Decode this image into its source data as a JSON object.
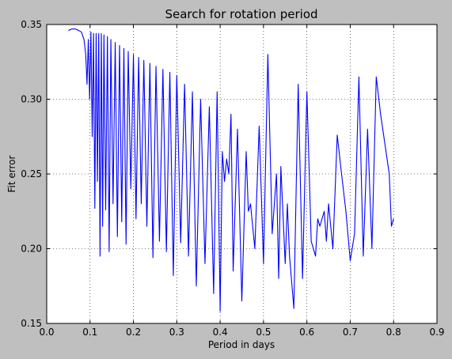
{
  "chart_data": {
    "type": "line",
    "title": "Search for rotation period",
    "xlabel": "Period in days",
    "ylabel": "Fit error",
    "xlim": [
      0.0,
      0.9
    ],
    "ylim": [
      0.15,
      0.35
    ],
    "xticks": [
      "0.0",
      "0.1",
      "0.2",
      "0.3",
      "0.4",
      "0.5",
      "0.6",
      "0.7",
      "0.8",
      "0.9"
    ],
    "yticks": [
      "0.15",
      "0.20",
      "0.25",
      "0.30",
      "0.35"
    ],
    "grid": true,
    "line_color": "#0000ff",
    "series": [
      {
        "x": [
          0.05,
          0.058,
          0.066,
          0.074,
          0.08,
          0.086,
          0.09,
          0.093,
          0.096,
          0.099,
          0.102,
          0.105,
          0.108,
          0.111,
          0.114,
          0.117,
          0.12,
          0.123,
          0.126,
          0.129,
          0.132,
          0.136,
          0.14,
          0.144,
          0.148,
          0.153,
          0.158,
          0.163,
          0.168,
          0.173,
          0.178,
          0.183,
          0.188,
          0.194,
          0.2,
          0.206,
          0.212,
          0.218,
          0.224,
          0.231,
          0.238,
          0.245,
          0.252,
          0.26,
          0.268,
          0.276,
          0.284,
          0.292,
          0.3,
          0.309,
          0.318,
          0.327,
          0.336,
          0.345,
          0.355,
          0.365,
          0.375,
          0.385,
          0.393,
          0.4,
          0.405,
          0.41,
          0.415,
          0.42,
          0.425,
          0.43,
          0.44,
          0.45,
          0.46,
          0.465,
          0.47,
          0.48,
          0.49,
          0.5,
          0.51,
          0.52,
          0.53,
          0.535,
          0.54,
          0.55,
          0.555,
          0.56,
          0.57,
          0.58,
          0.59,
          0.6,
          0.61,
          0.62,
          0.625,
          0.63,
          0.64,
          0.645,
          0.65,
          0.66,
          0.67,
          0.68,
          0.69,
          0.7,
          0.71,
          0.72,
          0.73,
          0.74,
          0.75,
          0.76,
          0.77,
          0.78,
          0.79,
          0.795,
          0.8
        ],
        "y": [
          0.346,
          0.347,
          0.347,
          0.346,
          0.345,
          0.34,
          0.33,
          0.31,
          0.34,
          0.3,
          0.345,
          0.275,
          0.344,
          0.227,
          0.344,
          0.245,
          0.344,
          0.195,
          0.344,
          0.215,
          0.343,
          0.226,
          0.342,
          0.198,
          0.34,
          0.23,
          0.338,
          0.208,
          0.336,
          0.218,
          0.334,
          0.203,
          0.332,
          0.24,
          0.33,
          0.22,
          0.328,
          0.23,
          0.326,
          0.215,
          0.324,
          0.194,
          0.322,
          0.205,
          0.32,
          0.198,
          0.318,
          0.182,
          0.316,
          0.204,
          0.31,
          0.195,
          0.305,
          0.175,
          0.3,
          0.19,
          0.295,
          0.17,
          0.305,
          0.158,
          0.265,
          0.245,
          0.26,
          0.25,
          0.29,
          0.185,
          0.28,
          0.165,
          0.265,
          0.225,
          0.23,
          0.2,
          0.282,
          0.19,
          0.33,
          0.21,
          0.25,
          0.18,
          0.255,
          0.19,
          0.23,
          0.195,
          0.16,
          0.31,
          0.18,
          0.305,
          0.205,
          0.195,
          0.22,
          0.215,
          0.225,
          0.205,
          0.23,
          0.2,
          0.276,
          0.25,
          0.225,
          0.192,
          0.21,
          0.315,
          0.195,
          0.28,
          0.2,
          0.315,
          0.29,
          0.27,
          0.25,
          0.215,
          0.22
        ]
      }
    ]
  }
}
